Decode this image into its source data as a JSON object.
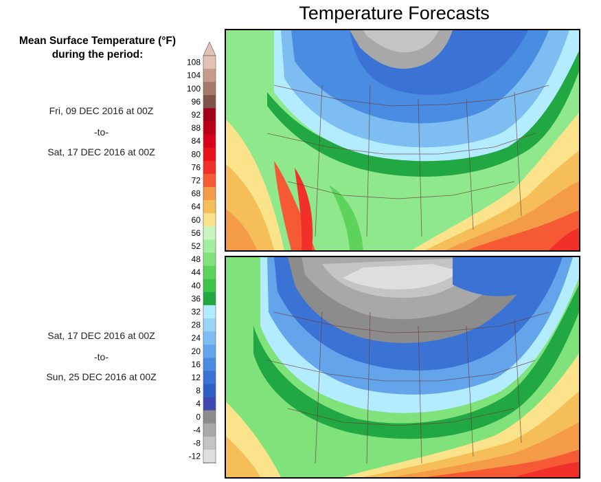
{
  "title": "Temperature Forecasts",
  "legend": {
    "title_line1": "Mean Surface Temperature (°F)",
    "title_line2": "during the period:",
    "levels": [
      "108",
      "104",
      "100",
      "96",
      "92",
      "88",
      "84",
      "80",
      "76",
      "72",
      "68",
      "64",
      "60",
      "56",
      "52",
      "48",
      "44",
      "40",
      "36",
      "32",
      "28",
      "24",
      "20",
      "16",
      "12",
      "8",
      "4",
      "0",
      "-4",
      "-8",
      "-12"
    ],
    "colors": [
      "#e3c2b5",
      "#c79b8c",
      "#a87868",
      "#7f5548",
      "#a0001a",
      "#bd0018",
      "#d7001a",
      "#e8101a",
      "#f2302a",
      "#f55a35",
      "#f39b47",
      "#f6be59",
      "#fae38a",
      "#c8f5c0",
      "#a4eea0",
      "#7fe27b",
      "#5ed35c",
      "#3ec44a",
      "#22a842",
      "#b3ecff",
      "#9ad4f7",
      "#7ebdf2",
      "#64a4ea",
      "#4a8ce2",
      "#3b73d5",
      "#2f5ec4",
      "#3d48b0",
      "#8c8c8c",
      "#a8a8a8",
      "#c4c4c4",
      "#dedede"
    ]
  },
  "periods": [
    {
      "start": "Fri, 09 DEC 2016 at 00Z",
      "sep": "-to-",
      "end": "Sat, 17 DEC 2016 at 00Z"
    },
    {
      "start": "Sat, 17 DEC 2016 at 00Z",
      "sep": "-to-",
      "end": "Sun, 25 DEC 2016 at 00Z"
    }
  ]
}
